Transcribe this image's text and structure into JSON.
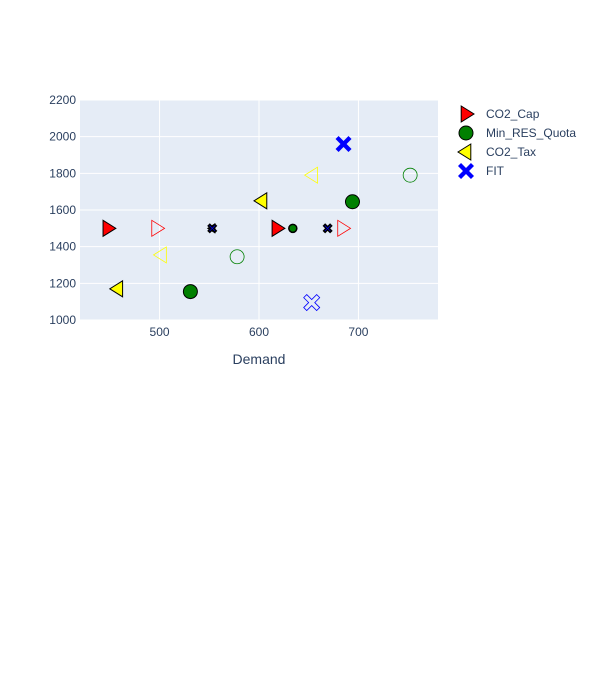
{
  "chart_data": {
    "type": "scatter",
    "xlabel": "Demand",
    "ylabel": "",
    "xlim": [
      420,
      780
    ],
    "ylim": [
      1000,
      2200
    ],
    "x_ticks": [
      500,
      600,
      700
    ],
    "y_ticks": [
      1000,
      1200,
      1400,
      1600,
      1800,
      2000,
      2200
    ],
    "grid": true,
    "legend_position": "top-right",
    "plot_bg": "#e5ecf6",
    "series": [
      {
        "name": "CO2_Cap",
        "symbol": "triangle-right",
        "color": "#ff0000",
        "points": [
          {
            "x": 448,
            "y": 1500,
            "style": "filled"
          },
          {
            "x": 618,
            "y": 1500,
            "style": "filled"
          },
          {
            "x": 497,
            "y": 1500,
            "style": "open"
          },
          {
            "x": 684,
            "y": 1500,
            "style": "open"
          }
        ]
      },
      {
        "name": "Min_RES_Quota",
        "symbol": "circle",
        "color": "#008000",
        "points": [
          {
            "x": 531,
            "y": 1155,
            "style": "filled"
          },
          {
            "x": 694,
            "y": 1645,
            "style": "filled"
          },
          {
            "x": 634,
            "y": 1500,
            "style": "filled-small"
          },
          {
            "x": 578,
            "y": 1345,
            "style": "open"
          },
          {
            "x": 752,
            "y": 1790,
            "style": "open"
          }
        ]
      },
      {
        "name": "CO2_Tax",
        "symbol": "triangle-left",
        "color": "#ffff00",
        "points": [
          {
            "x": 458,
            "y": 1170,
            "style": "filled"
          },
          {
            "x": 603,
            "y": 1650,
            "style": "filled"
          },
          {
            "x": 502,
            "y": 1355,
            "style": "open"
          },
          {
            "x": 654,
            "y": 1790,
            "style": "open"
          },
          {
            "x": 553,
            "y": 1500,
            "style": "filled-small"
          }
        ]
      },
      {
        "name": "FIT",
        "symbol": "x",
        "color": "#0000ff",
        "points": [
          {
            "x": 685,
            "y": 1960,
            "style": "filled"
          },
          {
            "x": 653,
            "y": 1095,
            "style": "open"
          },
          {
            "x": 669,
            "y": 1500,
            "style": "filled-small"
          },
          {
            "x": 553,
            "y": 1500,
            "style": "filled-small"
          }
        ]
      }
    ]
  }
}
